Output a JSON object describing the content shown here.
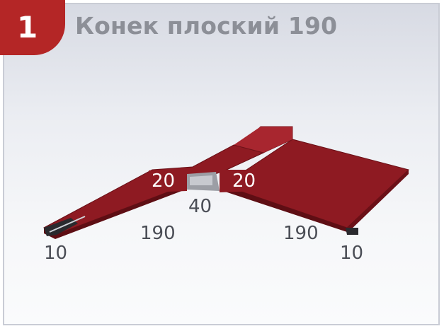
{
  "badge": {
    "number": "1"
  },
  "title": "Конек плоский 190",
  "dimensions": {
    "left_flange": "20",
    "right_flange": "20",
    "ridge_gap": "40",
    "left_slope": "190",
    "right_slope": "190",
    "left_hem": "10",
    "right_hem": "10"
  },
  "colors": {
    "profile": "#8e1a22",
    "profile_dark": "#5e0e14",
    "badge": "#b42626",
    "dimension_text": "#4a4d55",
    "title_text": "#8c8f97"
  }
}
